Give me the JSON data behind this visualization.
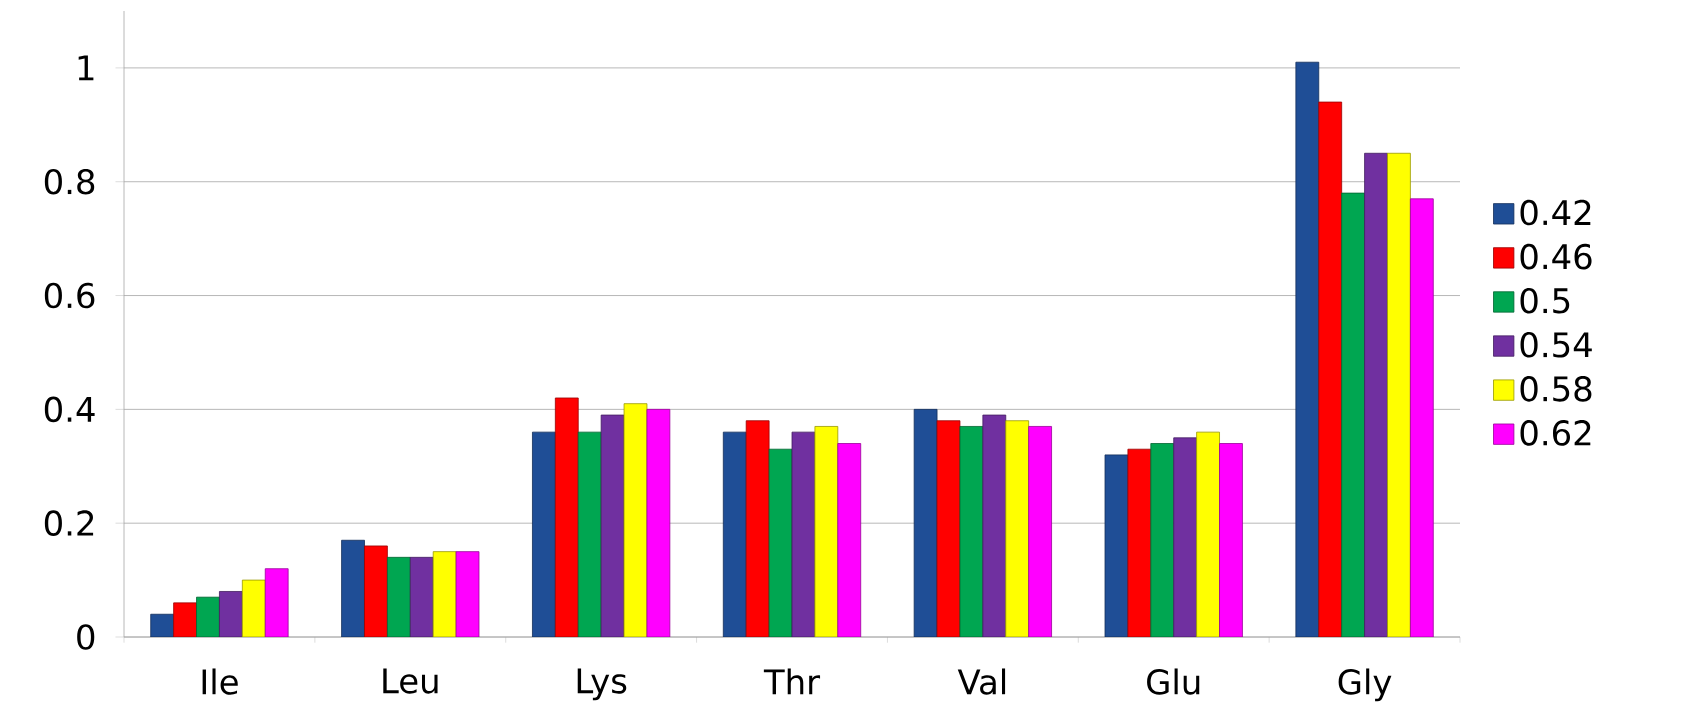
{
  "chart_data": {
    "type": "bar",
    "categories": [
      "Ile",
      "Leu",
      "Lys",
      "Thr",
      "Val",
      "Glu",
      "Gly"
    ],
    "series": [
      {
        "name": "0.42",
        "color": "#1f4e96",
        "values": [
          0.04,
          0.17,
          0.36,
          0.36,
          0.4,
          0.32,
          1.01
        ]
      },
      {
        "name": "0.46",
        "color": "#ff0000",
        "values": [
          0.06,
          0.16,
          0.42,
          0.38,
          0.38,
          0.33,
          0.94
        ]
      },
      {
        "name": "0.5",
        "color": "#00a651",
        "values": [
          0.07,
          0.14,
          0.36,
          0.33,
          0.37,
          0.34,
          0.78
        ]
      },
      {
        "name": "0.54",
        "color": "#7030a0",
        "values": [
          0.08,
          0.14,
          0.39,
          0.36,
          0.39,
          0.35,
          0.85
        ]
      },
      {
        "name": "0.58",
        "color": "#ffff00",
        "values": [
          0.1,
          0.15,
          0.41,
          0.37,
          0.38,
          0.36,
          0.85
        ]
      },
      {
        "name": "0.62",
        "color": "#ff00ff",
        "values": [
          0.12,
          0.15,
          0.4,
          0.34,
          0.37,
          0.34,
          0.77
        ]
      }
    ],
    "ylim": [
      0,
      1.1
    ],
    "yticks": [
      0,
      0.2,
      0.4,
      0.6,
      0.8,
      1
    ],
    "grid": "y",
    "legend": "right"
  }
}
